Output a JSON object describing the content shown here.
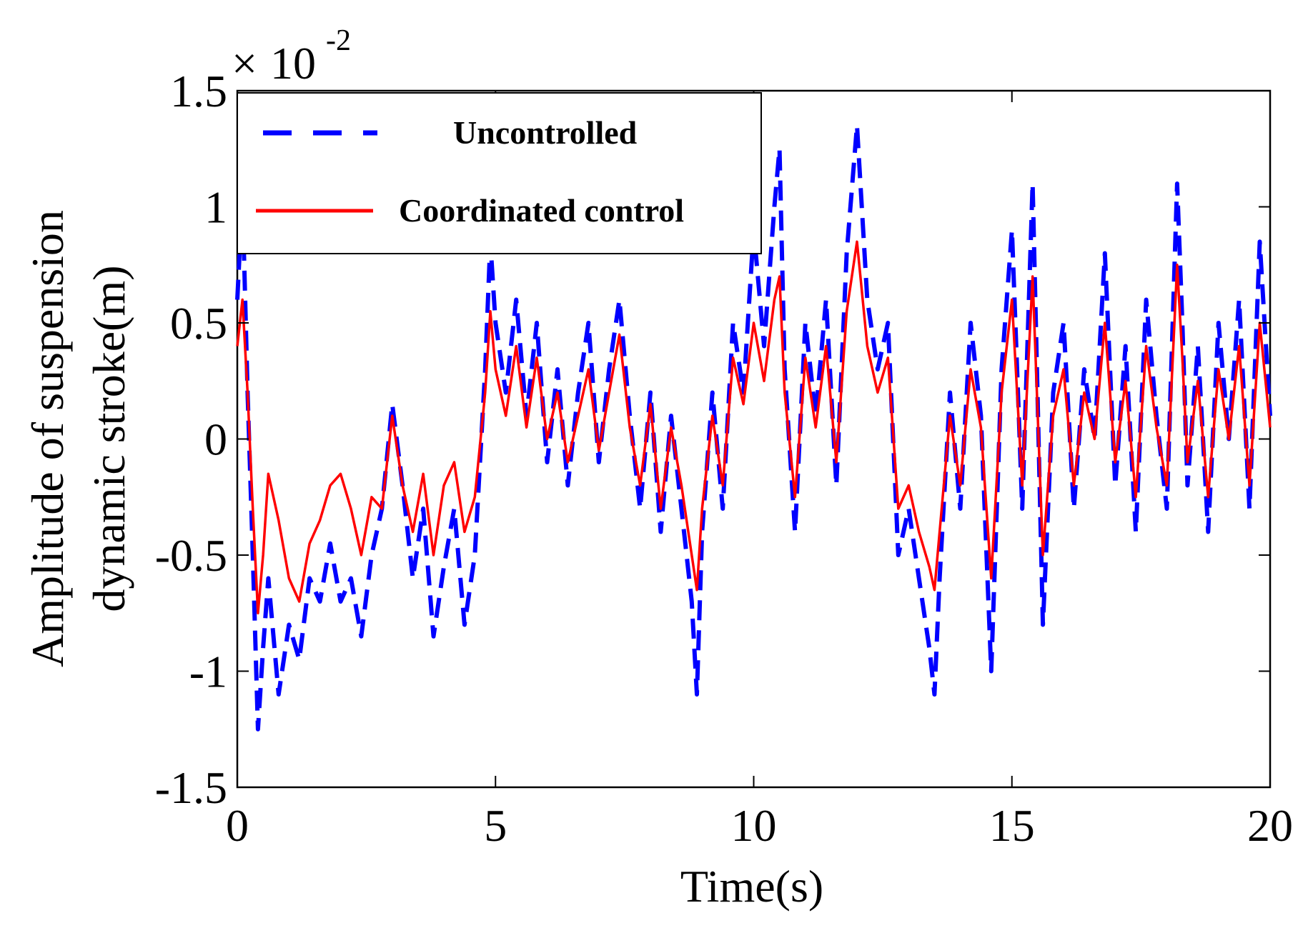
{
  "chart_data": {
    "type": "line",
    "xlabel": "Time(s)",
    "ylabel_lines": [
      "Amplitude of suspension",
      "dynamic stroke(m)"
    ],
    "scale_factor": {
      "prefix": "×",
      "base": "10",
      "exponent": "-2"
    },
    "xlim": [
      0,
      20
    ],
    "ylim": [
      -1.5,
      1.5
    ],
    "xticks": [
      0,
      5,
      10,
      15,
      20
    ],
    "xtick_labels": [
      "0",
      "5",
      "10",
      "15",
      "20"
    ],
    "yticks": [
      -1.5,
      -1,
      -0.5,
      0,
      0.5,
      1,
      1.5
    ],
    "ytick_labels": [
      "-1.5",
      "-1",
      "-0.5",
      "0",
      "0.5",
      "1",
      "1.5"
    ],
    "grid": false,
    "legend_position": "top-left",
    "series": [
      {
        "name": "Uncontrolled",
        "color": "#0000ff",
        "style": "dashed",
        "x": [
          0,
          0.1,
          0.2,
          0.3,
          0.4,
          0.5,
          0.6,
          0.8,
          1.0,
          1.2,
          1.4,
          1.6,
          1.8,
          2.0,
          2.2,
          2.4,
          2.6,
          2.8,
          3.0,
          3.2,
          3.4,
          3.6,
          3.8,
          4.0,
          4.2,
          4.4,
          4.6,
          4.8,
          4.9,
          5.0,
          5.2,
          5.4,
          5.6,
          5.8,
          6.0,
          6.2,
          6.4,
          6.6,
          6.8,
          7.0,
          7.2,
          7.4,
          7.6,
          7.8,
          8.0,
          8.2,
          8.4,
          8.6,
          8.8,
          8.9,
          9.0,
          9.2,
          9.4,
          9.6,
          9.8,
          10.0,
          10.2,
          10.4,
          10.5,
          10.6,
          10.8,
          11.0,
          11.2,
          11.4,
          11.6,
          11.8,
          12.0,
          12.2,
          12.4,
          12.6,
          12.8,
          13.0,
          13.2,
          13.4,
          13.5,
          13.6,
          13.8,
          14.0,
          14.2,
          14.4,
          14.6,
          14.8,
          15.0,
          15.2,
          15.4,
          15.6,
          15.8,
          16.0,
          16.2,
          16.4,
          16.6,
          16.8,
          17.0,
          17.2,
          17.4,
          17.6,
          17.8,
          18.0,
          18.2,
          18.3,
          18.4,
          18.6,
          18.8,
          19.0,
          19.2,
          19.4,
          19.6,
          19.8,
          20.0
        ],
        "y": [
          0.6,
          1.05,
          0.2,
          -0.5,
          -1.25,
          -0.9,
          -0.6,
          -1.1,
          -0.8,
          -0.95,
          -0.6,
          -0.7,
          -0.45,
          -0.7,
          -0.6,
          -0.85,
          -0.5,
          -0.3,
          0.15,
          -0.2,
          -0.6,
          -0.3,
          -0.85,
          -0.55,
          -0.3,
          -0.8,
          -0.5,
          0.3,
          0.85,
          0.5,
          0.2,
          0.6,
          0.1,
          0.5,
          -0.1,
          0.3,
          -0.2,
          0.2,
          0.5,
          -0.1,
          0.3,
          0.6,
          0.1,
          -0.3,
          0.2,
          -0.4,
          0.1,
          -0.3,
          -0.7,
          -1.1,
          -0.4,
          0.2,
          -0.3,
          0.5,
          0.2,
          0.9,
          0.4,
          1.0,
          1.25,
          0.3,
          -0.4,
          0.5,
          0.1,
          0.6,
          -0.2,
          0.8,
          1.35,
          0.6,
          0.3,
          0.5,
          -0.5,
          -0.3,
          -0.6,
          -0.9,
          -1.1,
          -0.6,
          0.2,
          -0.3,
          0.5,
          0.1,
          -1.0,
          0.3,
          0.9,
          -0.3,
          1.1,
          -0.8,
          0.2,
          0.5,
          -0.3,
          0.3,
          0.0,
          0.8,
          -0.2,
          0.4,
          -0.4,
          0.6,
          0.1,
          -0.3,
          1.1,
          0.5,
          -0.2,
          0.4,
          -0.4,
          0.5,
          0.0,
          0.6,
          -0.3,
          0.85,
          0.1
        ]
      },
      {
        "name": "Coordinated control",
        "color": "#ff0000",
        "style": "solid",
        "x": [
          0,
          0.1,
          0.2,
          0.3,
          0.4,
          0.5,
          0.6,
          0.8,
          1.0,
          1.2,
          1.4,
          1.6,
          1.8,
          2.0,
          2.2,
          2.4,
          2.6,
          2.8,
          3.0,
          3.2,
          3.4,
          3.6,
          3.8,
          4.0,
          4.2,
          4.4,
          4.6,
          4.8,
          4.9,
          5.0,
          5.2,
          5.4,
          5.6,
          5.8,
          6.0,
          6.2,
          6.4,
          6.6,
          6.8,
          7.0,
          7.2,
          7.4,
          7.6,
          7.8,
          8.0,
          8.2,
          8.4,
          8.6,
          8.8,
          8.9,
          9.0,
          9.2,
          9.4,
          9.6,
          9.8,
          10.0,
          10.2,
          10.4,
          10.5,
          10.6,
          10.8,
          11.0,
          11.2,
          11.4,
          11.6,
          11.8,
          12.0,
          12.2,
          12.4,
          12.6,
          12.8,
          13.0,
          13.2,
          13.4,
          13.5,
          13.6,
          13.8,
          14.0,
          14.2,
          14.4,
          14.6,
          14.8,
          15.0,
          15.2,
          15.4,
          15.6,
          15.8,
          16.0,
          16.2,
          16.4,
          16.6,
          16.8,
          17.0,
          17.2,
          17.4,
          17.6,
          17.8,
          18.0,
          18.2,
          18.3,
          18.4,
          18.6,
          18.8,
          19.0,
          19.2,
          19.4,
          19.6,
          19.8,
          20.0
        ],
        "y": [
          0.4,
          0.6,
          0.2,
          -0.3,
          -0.75,
          -0.5,
          -0.15,
          -0.35,
          -0.6,
          -0.7,
          -0.45,
          -0.35,
          -0.2,
          -0.15,
          -0.3,
          -0.5,
          -0.25,
          -0.3,
          0.1,
          -0.2,
          -0.4,
          -0.15,
          -0.5,
          -0.2,
          -0.1,
          -0.4,
          -0.25,
          0.2,
          0.55,
          0.3,
          0.1,
          0.4,
          0.05,
          0.35,
          0.0,
          0.2,
          -0.1,
          0.1,
          0.3,
          -0.05,
          0.2,
          0.45,
          0.05,
          -0.2,
          0.15,
          -0.3,
          0.05,
          -0.2,
          -0.5,
          -0.65,
          -0.3,
          0.1,
          -0.2,
          0.35,
          0.15,
          0.5,
          0.25,
          0.6,
          0.7,
          0.2,
          -0.25,
          0.35,
          0.05,
          0.4,
          -0.1,
          0.55,
          0.85,
          0.4,
          0.2,
          0.35,
          -0.3,
          -0.2,
          -0.4,
          -0.55,
          -0.65,
          -0.4,
          0.1,
          -0.2,
          0.3,
          0.05,
          -0.6,
          0.2,
          0.6,
          -0.2,
          0.7,
          -0.5,
          0.1,
          0.3,
          -0.2,
          0.2,
          0.0,
          0.5,
          -0.1,
          0.25,
          -0.25,
          0.4,
          0.05,
          -0.2,
          0.75,
          0.35,
          -0.1,
          0.25,
          -0.25,
          0.3,
          0.0,
          0.4,
          -0.2,
          0.5,
          0.05
        ]
      }
    ]
  }
}
